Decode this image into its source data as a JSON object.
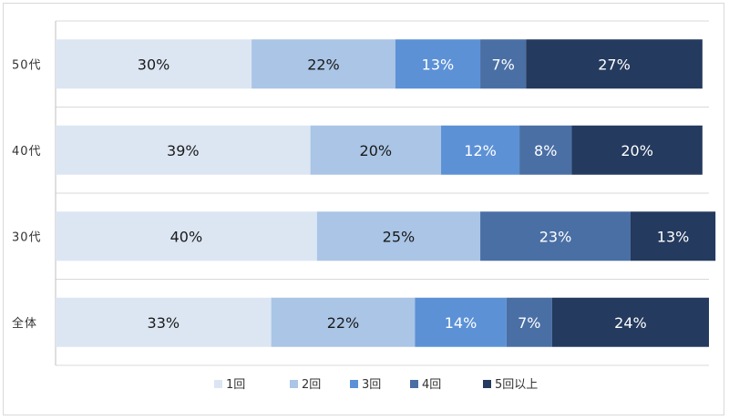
{
  "chart_data": {
    "type": "bar",
    "orientation": "horizontal",
    "stacked": true,
    "percent": true,
    "categories": [
      "50代",
      "40代",
      "30代",
      "全体"
    ],
    "series": [
      {
        "name": "1回",
        "values": [
          30,
          39,
          40,
          33
        ],
        "color": "#dce6f3",
        "label_color": "#1a1a1a"
      },
      {
        "name": "2回",
        "values": [
          22,
          20,
          25,
          22
        ],
        "color": "#aac5e6",
        "label_color": "#1a1a1a"
      },
      {
        "name": "3回",
        "values": [
          13,
          12,
          0,
          14
        ],
        "color": "#5c91d6",
        "label_color": "#ffffff"
      },
      {
        "name": "4回",
        "values": [
          7,
          8,
          23,
          7
        ],
        "color": "#4a6fa5",
        "label_color": "#ffffff"
      },
      {
        "name": "5回以上",
        "values": [
          27,
          20,
          13,
          24
        ],
        "color": "#243a5e",
        "label_color": "#ffffff"
      }
    ],
    "xlim": [
      0,
      100
    ],
    "value_suffix": "%",
    "grid": true,
    "legend_position": "bottom"
  }
}
